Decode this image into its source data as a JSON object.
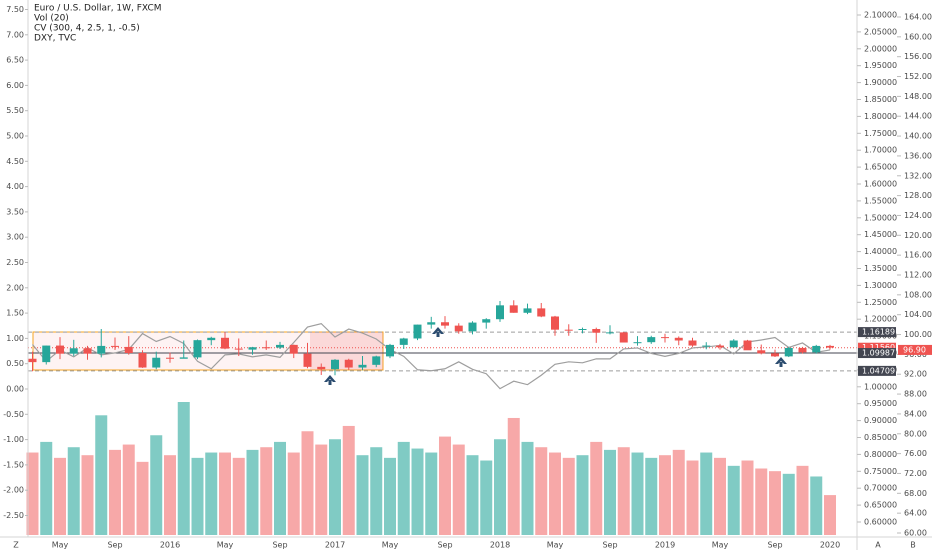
{
  "chart_data": {
    "type": "candlestick",
    "title": "Euro / U.S. Dollar, 1W, FXCM",
    "categories": [
      null,
      null,
      "May",
      null,
      null,
      null,
      "Sep",
      null,
      null,
      null,
      "2016",
      null,
      null,
      null,
      "May",
      null,
      null,
      null,
      "Sep",
      null,
      null,
      null,
      "2017",
      null,
      null,
      null,
      "May",
      null,
      null,
      null,
      "Sep",
      null,
      null,
      null,
      "2018",
      null,
      null,
      null,
      "May",
      null,
      null,
      null,
      "Sep",
      null,
      null,
      null,
      "2019",
      null,
      null,
      null,
      "May",
      null,
      null,
      null,
      "Sep",
      null,
      null,
      null,
      "2020"
    ],
    "open": [
      1.083,
      1.073,
      1.122,
      1.098,
      1.114,
      1.098,
      1.121,
      1.118,
      1.1,
      1.057,
      1.086,
      1.083,
      1.087,
      1.138,
      1.145,
      1.113,
      1.11,
      1.117,
      1.116,
      1.124,
      1.098,
      1.059,
      1.052,
      1.08,
      1.057,
      1.065,
      1.09,
      1.124,
      1.143,
      1.184,
      1.191,
      1.181,
      1.164,
      1.19,
      1.2,
      1.241,
      1.219,
      1.232,
      1.208,
      1.169,
      1.168,
      1.171,
      1.16,
      1.161,
      1.131,
      1.132,
      1.147,
      1.145,
      1.137,
      1.122,
      1.122,
      1.117,
      1.137,
      1.108,
      1.099,
      1.09,
      1.115,
      1.102,
      1.121
    ],
    "high": [
      1.104,
      1.122,
      1.147,
      1.139,
      1.121,
      1.171,
      1.146,
      1.15,
      1.108,
      1.104,
      1.101,
      1.137,
      1.14,
      1.148,
      1.162,
      1.143,
      1.118,
      1.137,
      1.133,
      1.125,
      1.13,
      1.069,
      1.082,
      1.083,
      1.091,
      1.092,
      1.127,
      1.145,
      1.184,
      1.207,
      1.209,
      1.188,
      1.194,
      1.203,
      1.254,
      1.256,
      1.246,
      1.248,
      1.21,
      1.185,
      1.175,
      1.175,
      1.182,
      1.162,
      1.15,
      1.151,
      1.157,
      1.149,
      1.145,
      1.132,
      1.127,
      1.141,
      1.139,
      1.125,
      1.11,
      1.118,
      1.118,
      1.124,
      1.124
    ],
    "low": [
      1.046,
      1.066,
      1.082,
      1.091,
      1.08,
      1.087,
      1.109,
      1.095,
      1.056,
      1.052,
      1.071,
      1.084,
      1.082,
      1.123,
      1.111,
      1.091,
      1.095,
      1.109,
      1.112,
      1.085,
      1.055,
      1.035,
      1.034,
      1.05,
      1.049,
      1.058,
      1.085,
      1.112,
      1.138,
      1.172,
      1.172,
      1.157,
      1.155,
      1.172,
      1.192,
      1.219,
      1.215,
      1.206,
      1.151,
      1.151,
      1.158,
      1.13,
      1.155,
      1.132,
      1.122,
      1.127,
      1.131,
      1.123,
      1.118,
      1.111,
      1.11,
      1.116,
      1.11,
      1.096,
      1.088,
      1.088,
      1.098,
      1.098,
      1.11
    ],
    "close": [
      1.073,
      1.122,
      1.098,
      1.114,
      1.098,
      1.121,
      1.118,
      1.1,
      1.057,
      1.086,
      1.083,
      1.087,
      1.138,
      1.145,
      1.113,
      1.11,
      1.117,
      1.116,
      1.124,
      1.098,
      1.059,
      1.052,
      1.08,
      1.057,
      1.065,
      1.09,
      1.124,
      1.143,
      1.184,
      1.191,
      1.181,
      1.164,
      1.19,
      1.2,
      1.241,
      1.219,
      1.232,
      1.208,
      1.169,
      1.168,
      1.171,
      1.16,
      1.161,
      1.131,
      1.132,
      1.147,
      1.145,
      1.137,
      1.122,
      1.122,
      1.117,
      1.137,
      1.108,
      1.099,
      1.09,
      1.115,
      1.102,
      1.121,
      1.116
    ],
    "up_color": "#26a69a",
    "down_color": "#ef5350",
    "ylim": [
      0.6,
      2.1
    ],
    "yticks": [
      {
        "value": 2.1,
        "label": "2.10000"
      },
      {
        "value": 2.05,
        "label": "2.05000"
      },
      {
        "value": 2.0,
        "label": "2.00000"
      },
      {
        "value": 1.95,
        "label": "1.95000"
      },
      {
        "value": 1.9,
        "label": "1.90000"
      },
      {
        "value": 1.85,
        "label": "1.85000"
      },
      {
        "value": 1.8,
        "label": "1.80000"
      },
      {
        "value": 1.75,
        "label": "1.75000"
      },
      {
        "value": 1.7,
        "label": "1.70000"
      },
      {
        "value": 1.65,
        "label": "1.65000"
      },
      {
        "value": 1.6,
        "label": "1.60000"
      },
      {
        "value": 1.55,
        "label": "1.55000"
      },
      {
        "value": 1.5,
        "label": "1.50000"
      },
      {
        "value": 1.45,
        "label": "1.45000"
      },
      {
        "value": 1.4,
        "label": "1.40000"
      },
      {
        "value": 1.35,
        "label": "1.35000"
      },
      {
        "value": 1.3,
        "label": "1.30000"
      },
      {
        "value": 1.25,
        "label": "1.25000"
      },
      {
        "value": 1.2,
        "label": "1.20000"
      },
      {
        "value": 1.15,
        "label": "1.15000"
      },
      {
        "value": 1.1,
        "label": "1.10000"
      },
      {
        "value": 1.05,
        "label": "1.05000"
      },
      {
        "value": 1.0,
        "label": "1.00000"
      },
      {
        "value": 0.95,
        "label": "0.95000"
      },
      {
        "value": 0.9,
        "label": "0.90000"
      },
      {
        "value": 0.85,
        "label": "0.85000"
      },
      {
        "value": 0.8,
        "label": "0.80000"
      },
      {
        "value": 0.75,
        "label": "0.75000"
      },
      {
        "value": 0.7,
        "label": "0.70000"
      },
      {
        "value": 0.65,
        "label": "0.65000"
      },
      {
        "value": 0.6,
        "label": "0.60000"
      }
    ],
    "volume": {
      "name": "Vol (20)",
      "up_color": "#80cbc4",
      "down_color": "#f7a8a8",
      "values": [
        62,
        70,
        58,
        66,
        60,
        90,
        64,
        68,
        55,
        75,
        60,
        100,
        58,
        62,
        62,
        58,
        64,
        66,
        70,
        62,
        78,
        68,
        72,
        82,
        60,
        66,
        58,
        70,
        65,
        62,
        74,
        68,
        60,
        56,
        72,
        88,
        70,
        66,
        62,
        58,
        60,
        70,
        64,
        66,
        62,
        58,
        60,
        64,
        56,
        62,
        58,
        52,
        56,
        50,
        48,
        46,
        52,
        44,
        30
      ]
    },
    "cv": {
      "name": "CV (300, 4, 2.5, 1, -0.5)",
      "ylim": [
        -2.5,
        7.5
      ],
      "yticks": [
        {
          "value": 7.5,
          "label": "7.50"
        },
        {
          "value": 7,
          "label": "7.00"
        },
        {
          "value": 6.5,
          "label": "6.50"
        },
        {
          "value": 6,
          "label": "6.00"
        },
        {
          "value": 5.5,
          "label": "5.50"
        },
        {
          "value": 5,
          "label": "5.00"
        },
        {
          "value": 4.5,
          "label": "4.50"
        },
        {
          "value": 4,
          "label": "4.00"
        },
        {
          "value": 3.5,
          "label": "3.50"
        },
        {
          "value": 3,
          "label": "3.00"
        },
        {
          "value": 2.5,
          "label": "2.50"
        },
        {
          "value": 2,
          "label": "2.00"
        },
        {
          "value": 1.5,
          "label": "1.50"
        },
        {
          "value": 1,
          "label": "1.00"
        },
        {
          "value": 0.5,
          "label": "0.50"
        },
        {
          "value": 0,
          "label": "0.00"
        },
        {
          "value": -0.5,
          "label": "-0.50"
        },
        {
          "value": -1,
          "label": "-1.00"
        },
        {
          "value": -1.5,
          "label": "-1.50"
        },
        {
          "value": -2,
          "label": "-2.00"
        },
        {
          "value": -2.5,
          "label": "-2.50"
        }
      ]
    },
    "dxy": {
      "name": "DXY, TVC",
      "color": "#9e9e9e",
      "values": [
        98.0,
        94.6,
        96.9,
        95.5,
        97.3,
        95.9,
        96.3,
        97.0,
        100.2,
        98.6,
        99.6,
        98.2,
        94.6,
        93.1,
        95.9,
        96.1,
        95.5,
        95.9,
        95.4,
        98.4,
        101.5,
        102.2,
        99.5,
        101.1,
        100.3,
        99.1,
        97.0,
        95.6,
        92.9,
        92.7,
        93.1,
        94.5,
        93.0,
        92.1,
        89.1,
        90.6,
        89.9,
        91.8,
        94.0,
        94.5,
        94.3,
        95.1,
        95.1,
        97.1,
        97.3,
        96.2,
        95.6,
        96.2,
        97.3,
        97.5,
        97.8,
        96.1,
        98.5,
        98.9,
        99.4,
        97.4,
        98.3,
        96.4,
        96.9
      ],
      "y2lim": [
        60,
        164
      ],
      "y2ticks": [
        {
          "value": 164,
          "label": "164.00"
        },
        {
          "value": 160,
          "label": "160.00"
        },
        {
          "value": 156,
          "label": "156.00"
        },
        {
          "value": 152,
          "label": "152.00"
        },
        {
          "value": 148,
          "label": "148.00"
        },
        {
          "value": 144,
          "label": "144.00"
        },
        {
          "value": 140,
          "label": "140.00"
        },
        {
          "value": 136,
          "label": "136.00"
        },
        {
          "value": 132,
          "label": "132.00"
        },
        {
          "value": 128,
          "label": "128.00"
        },
        {
          "value": 124,
          "label": "124.00"
        },
        {
          "value": 120,
          "label": "120.00"
        },
        {
          "value": 116,
          "label": "116.00"
        },
        {
          "value": 112,
          "label": "112.00"
        },
        {
          "value": 108,
          "label": "108.00"
        },
        {
          "value": 104,
          "label": "104.00"
        },
        {
          "value": 100,
          "label": "100.00"
        },
        {
          "value": 96,
          "label": "96.00"
        },
        {
          "value": 92,
          "label": "92.00"
        },
        {
          "value": 88,
          "label": "88.00"
        },
        {
          "value": 84,
          "label": "84.00"
        },
        {
          "value": 80,
          "label": "80.00"
        },
        {
          "value": 76,
          "label": "76.00"
        },
        {
          "value": 72,
          "label": "72.00"
        },
        {
          "value": 68,
          "label": "68.00"
        },
        {
          "value": 64,
          "label": "64.00"
        },
        {
          "value": 60,
          "label": "60.00"
        }
      ],
      "last": {
        "value": 96.9,
        "label": "96.90",
        "color": "#ef5350"
      }
    },
    "price_lines": [
      {
        "value": 1.16189,
        "label": "1.16189",
        "color": "#9e9e9e",
        "tag": "#434651",
        "dash": "4 3"
      },
      {
        "value": 1.1156,
        "label": "1.11560",
        "color": "#ef5350",
        "tag": "#ef5350",
        "dash": "1 2"
      },
      {
        "value": 1.09987,
        "label": "1.09987",
        "color": "#434651",
        "tag": "#434651",
        "dash": "none"
      },
      {
        "value": 1.04709,
        "label": "1.04709",
        "color": "#9e9e9e",
        "tag": "#434651",
        "dash": "4 3"
      }
    ],
    "buttons": [
      "Z",
      "A",
      "B"
    ]
  }
}
